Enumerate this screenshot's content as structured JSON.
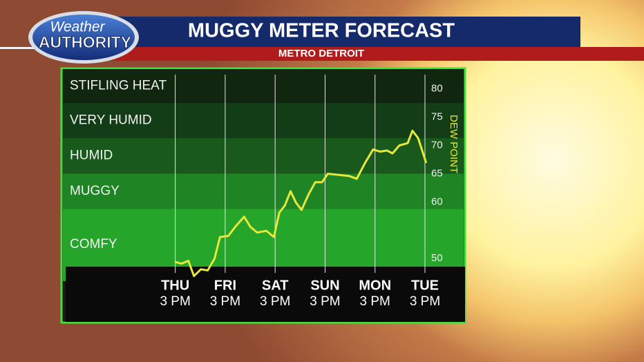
{
  "chart_data": {
    "type": "line",
    "title": "MUGGY METER FORECAST",
    "subtitle": "METRO DETROIT",
    "logo": [
      "Weather",
      "AUTHORITY"
    ],
    "y_axis_label": "DEW POINT",
    "color": "#e6e83a",
    "x": [
      0,
      3,
      6.3,
      9,
      12.3,
      15.6,
      18.9,
      21.5,
      25.5,
      28.8,
      33.1,
      36.1,
      39.4,
      43.8,
      47.4,
      50,
      52.7,
      55.4,
      58,
      60.7,
      64,
      67.3,
      70.6,
      73.3,
      78.6,
      83.5,
      87.2,
      91.2,
      95.1,
      98.4,
      101.8,
      104.4,
      107.7,
      111.7,
      114,
      116.7,
      120.6
    ],
    "values": [
      49.4,
      49.1,
      49.6,
      46.9,
      48.1,
      47.9,
      50,
      53.8,
      54,
      55.6,
      57.4,
      55.6,
      54.6,
      54.9,
      53.8,
      58.1,
      59.4,
      61.9,
      59.9,
      58.6,
      61.3,
      63.5,
      63.5,
      65,
      64.8,
      64.6,
      64.1,
      66.9,
      69.3,
      68.9,
      69.1,
      68.6,
      70,
      70.4,
      72.6,
      71.3,
      66.9
    ],
    "xlim": [
      -54,
      120
    ],
    "xticks": [
      0,
      24,
      48,
      72,
      96,
      120
    ],
    "xtick_days": [
      "THU",
      "FRI",
      "SAT",
      "SUN",
      "MON",
      "TUE"
    ],
    "xtick_times": [
      "3 PM",
      "3 PM",
      "3 PM",
      "3 PM",
      "3 PM",
      "3 PM"
    ],
    "ylim": [
      46,
      83.5
    ],
    "yticks": [
      50,
      60,
      65,
      70,
      75,
      80
    ],
    "zones": [
      {
        "label": "STIFLING HEAT",
        "from": 77.5,
        "to": 83.5,
        "color": "#10260f"
      },
      {
        "label": "VERY HUMID",
        "from": 71.3,
        "to": 77.5,
        "color": "#133d16"
      },
      {
        "label": "HUMID",
        "from": 65,
        "to": 71.3,
        "color": "#195a1c"
      },
      {
        "label": "MUGGY",
        "from": 58.8,
        "to": 65,
        "color": "#1f8524"
      },
      {
        "label": "COMFY",
        "from": 46,
        "to": 58.8,
        "color": "#25a62a"
      }
    ]
  }
}
